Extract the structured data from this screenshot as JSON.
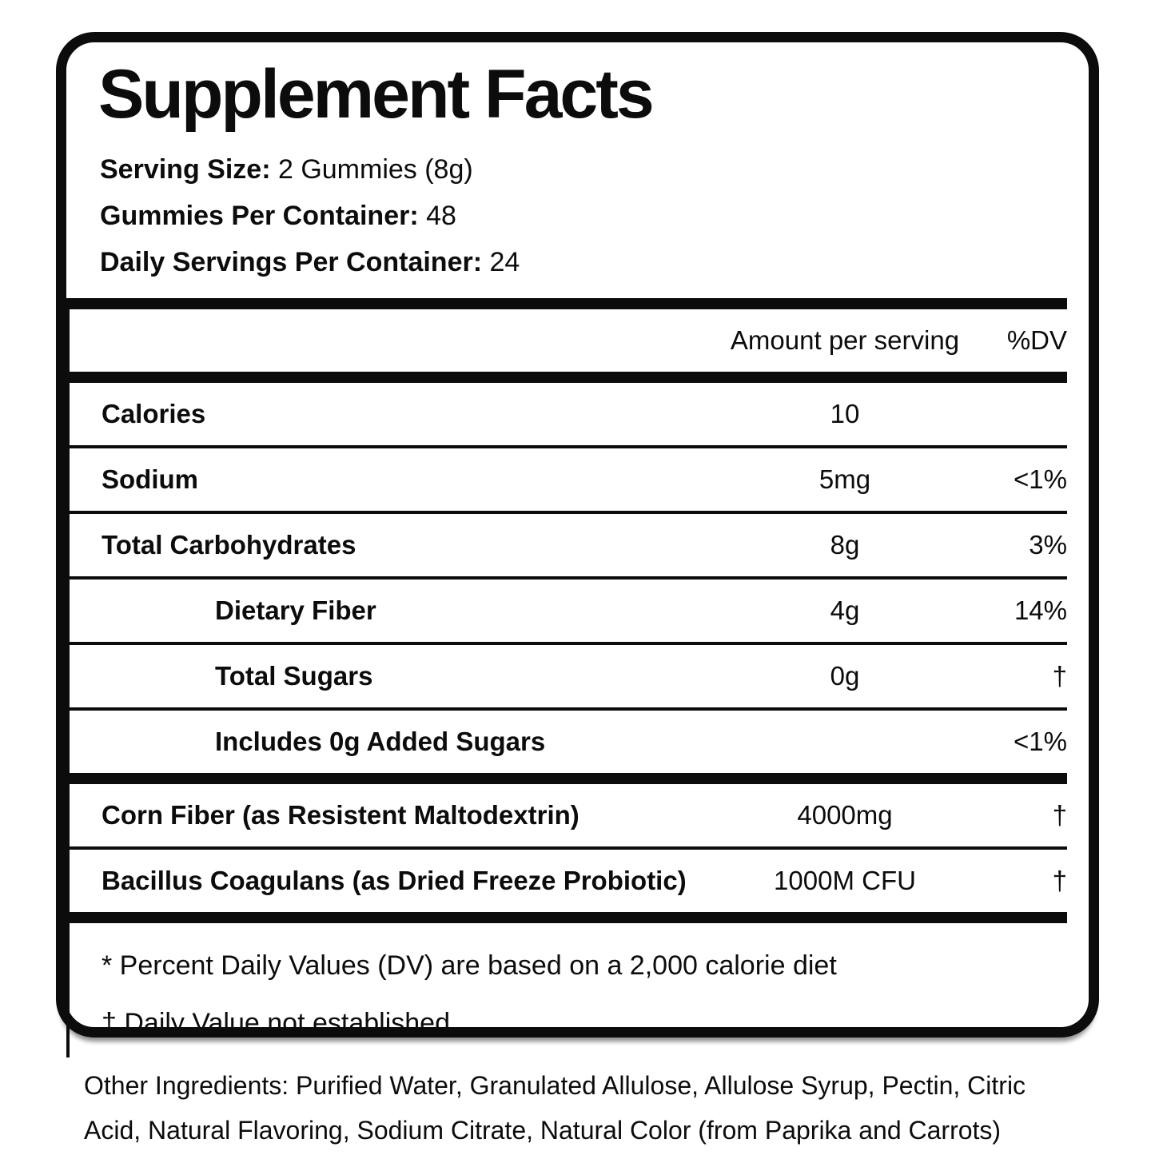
{
  "title": "Supplement Facts",
  "serving_info": [
    {
      "label": "Serving Size:",
      "value": "2 Gummies (8g)"
    },
    {
      "label": "Gummies Per Container:",
      "value": "48"
    },
    {
      "label": "Daily Servings Per Container:",
      "value": "24"
    }
  ],
  "table": {
    "header": {
      "amount": "Amount per serving",
      "dv": "%DV"
    },
    "rows": [
      {
        "name": "Calories",
        "amount": "10",
        "dv": ""
      },
      {
        "name": "Sodium",
        "amount": "5mg",
        "dv": "<1%"
      },
      {
        "name": "Total Carbohydrates",
        "amount": "8g",
        "dv": "3%"
      },
      {
        "name": "Dietary Fiber",
        "amount": "4g",
        "dv": "14%"
      },
      {
        "name": "Total Sugars",
        "amount": "0g",
        "dv": "†"
      },
      {
        "name": "Includes 0g Added Sugars",
        "amount": "",
        "dv": "<1%"
      }
    ],
    "supplement_rows": [
      {
        "name": "Corn Fiber (as Resistent Maltodextrin)",
        "amount": "4000mg",
        "dv": "†"
      },
      {
        "name": "Bacillus Coagulans (as Dried Freeze Probiotic)",
        "amount": "1000M CFU",
        "dv": "†"
      }
    ]
  },
  "footnotes": [
    "* Percent Daily Values (DV) are based on a 2,000 calorie diet",
    "† Daily Value not established"
  ],
  "other_ingredients_lines": [
    "Other Ingredients: Purified Water, Granulated Allulose, Allulose Syrup, Pectin, Citric",
    "Acid, Natural Flavoring, Sodium Citrate, Natural Color (from Paprika and Carrots)"
  ],
  "colors": {
    "ink": "#0c0c0c",
    "background": "#ffffff"
  }
}
